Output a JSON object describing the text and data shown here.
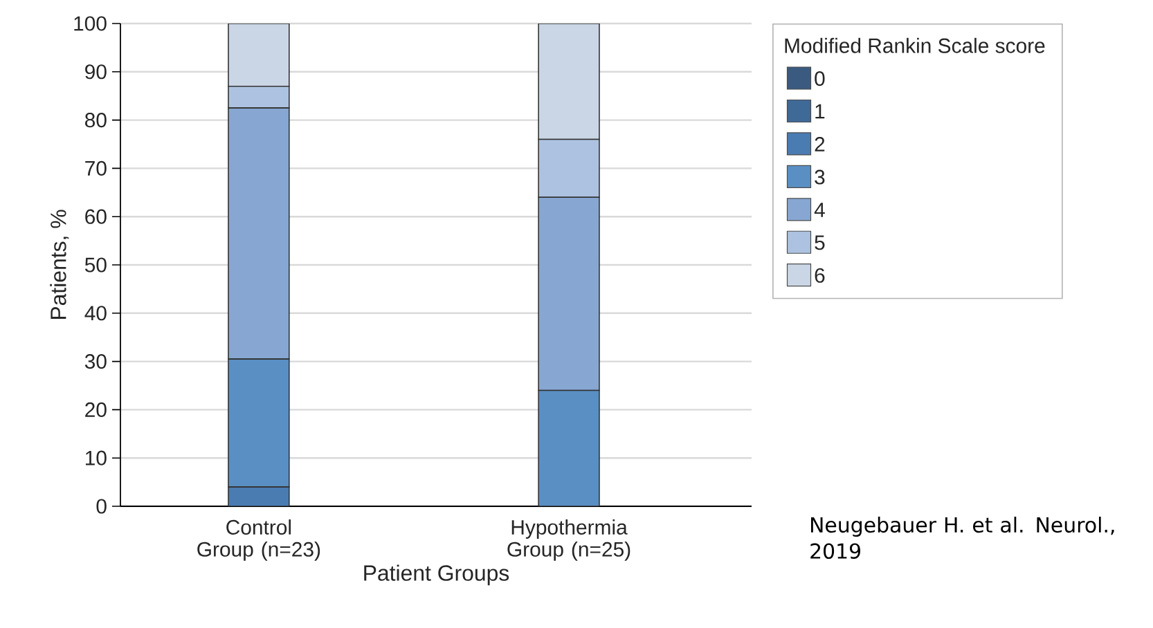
{
  "chart_data": {
    "type": "bar",
    "stacked": true,
    "categories": [
      "Control Group (n=23)",
      "Hypothermia Group (n=25)"
    ],
    "xlabel": "Patient Groups",
    "ylabel": "Patients, %",
    "legend_title": "Modified Rankin Scale score",
    "series": [
      {
        "name": "0",
        "color": "#3a5a80",
        "values": [
          0,
          0
        ]
      },
      {
        "name": "1",
        "color": "#3f6996",
        "values": [
          0,
          0
        ]
      },
      {
        "name": "2",
        "color": "#4a7cb2",
        "values": [
          4,
          0
        ]
      },
      {
        "name": "3",
        "color": "#5a8fc3",
        "values": [
          26.5,
          24
        ]
      },
      {
        "name": "4",
        "color": "#87a7d2",
        "values": [
          52,
          40
        ]
      },
      {
        "name": "5",
        "color": "#adc2e0",
        "values": [
          4.5,
          12
        ]
      },
      {
        "name": "6",
        "color": "#cad6e5",
        "values": [
          13,
          24
        ]
      }
    ],
    "ylim": [
      0,
      100
    ],
    "yticks": [
      0,
      10,
      20,
      30,
      40,
      50,
      60,
      70,
      80,
      90,
      100
    ],
    "grid": "y",
    "legend": "right",
    "annotations": [
      "Neugebauer H. et al. Neurol., 2019"
    ]
  }
}
